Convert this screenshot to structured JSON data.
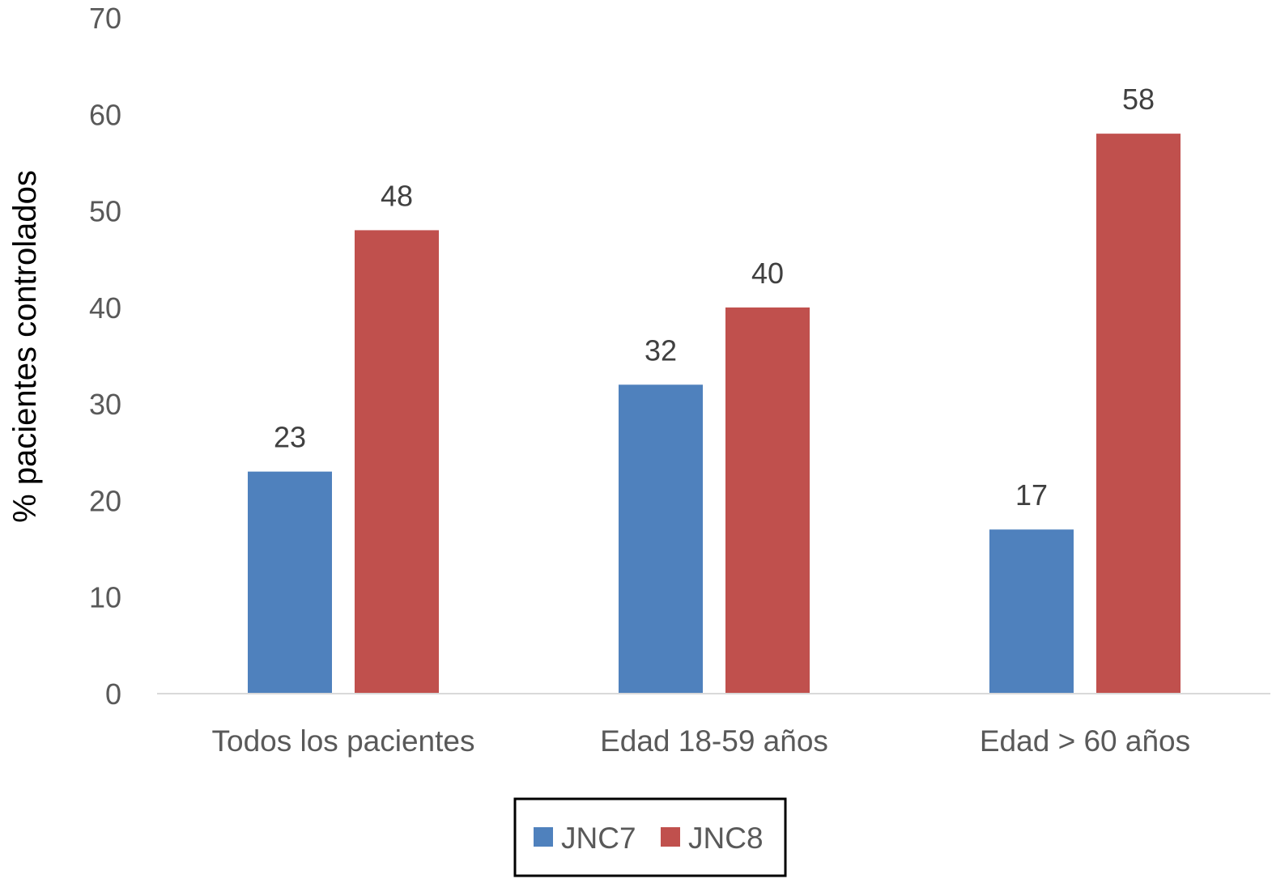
{
  "chart_data": {
    "type": "bar",
    "categories": [
      "Todos los pacientes",
      "Edad 18-59 años",
      "Edad > 60 años"
    ],
    "series": [
      {
        "name": "JNC7",
        "values": [
          23,
          32,
          17
        ],
        "data_labels": [
          "23",
          "32",
          "17"
        ],
        "color": "#4f81bd"
      },
      {
        "name": "JNC8",
        "values": [
          48,
          40,
          58
        ],
        "data_labels": [
          "48",
          "40",
          "58"
        ],
        "color": "#c0504d"
      }
    ],
    "title": "",
    "xlabel": "",
    "ylabel": "% pacientes controlados",
    "ylim": [
      0,
      70
    ],
    "yticks": [
      "0",
      "10",
      "20",
      "30",
      "40",
      "50",
      "60",
      "70"
    ],
    "grid": false,
    "legend_position": "bottom-center"
  }
}
